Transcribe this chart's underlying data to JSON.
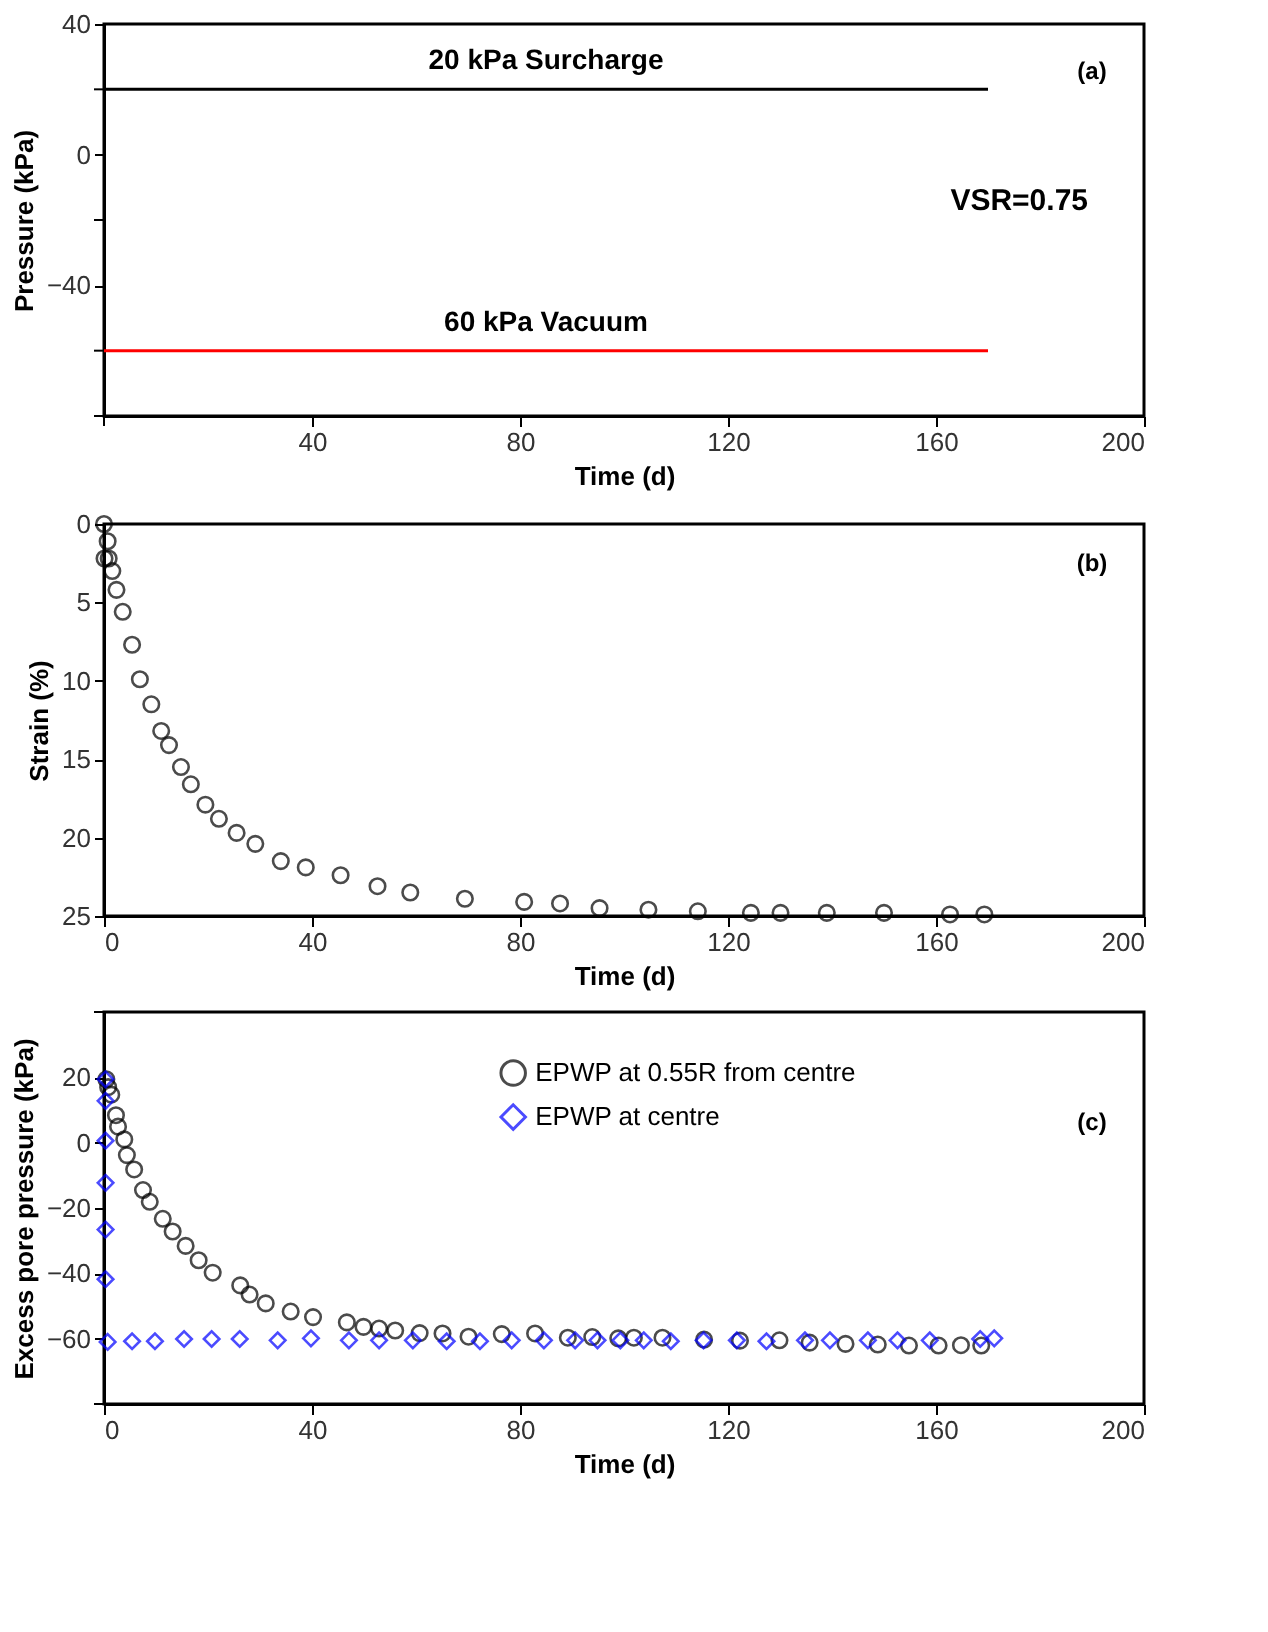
{
  "chart_data": [
    {
      "type": "line",
      "ylabel": "Pressure (kPa)",
      "xlabel": "Time (d)",
      "xlim": [
        0,
        200
      ],
      "ylim": [
        -80,
        40
      ],
      "xticks": [
        {
          "value": 0,
          "label": null
        },
        40,
        80,
        120,
        160,
        200
      ],
      "yticks": [
        40,
        {
          "value": 20,
          "label": null
        },
        0,
        {
          "value": -20,
          "label": null
        },
        -40,
        {
          "value": -60,
          "label": null
        },
        {
          "value": -80,
          "label": null
        }
      ],
      "series": [
        {
          "name": "20 kPa Surcharge",
          "color": "#000000",
          "x": [
            0,
            170
          ],
          "values": [
            20,
            20
          ]
        },
        {
          "name": "60 kPa Vacuum",
          "color": "#ff0000",
          "x": [
            0,
            170
          ],
          "values": [
            -60,
            -60
          ]
        }
      ],
      "annotations": [
        "(a)",
        "VSR=0.75"
      ],
      "marker": "none",
      "grid": false
    },
    {
      "type": "scatter",
      "ylabel": "Strain (%)",
      "xlabel": "Time (d)",
      "xlim": [
        0,
        200
      ],
      "ylim": [
        25,
        0
      ],
      "xticks": [
        0,
        40,
        80,
        120,
        160,
        200
      ],
      "yticks": [
        0,
        5,
        10,
        15,
        20,
        25
      ],
      "series": [
        {
          "color": "#000000",
          "marker": "circle",
          "x": [
            0,
            0.7,
            0.1,
            0.9,
            1.6,
            2.4,
            3.6,
            5.4,
            6.9,
            9.1,
            11.0,
            12.5,
            14.8,
            16.7,
            19.5,
            22.1,
            25.5,
            29.1,
            34.0,
            38.8,
            45.5,
            52.6,
            58.9,
            69.4,
            80.8,
            87.7,
            95.3,
            104.7,
            114.2,
            124.4,
            130.1,
            139.0,
            150.0,
            162.7,
            169.3
          ],
          "values": [
            0,
            1.1,
            2.2,
            2.2,
            3.0,
            4.2,
            5.6,
            7.7,
            9.9,
            11.5,
            13.2,
            14.1,
            15.5,
            16.6,
            17.9,
            18.8,
            19.7,
            20.4,
            21.5,
            21.9,
            22.4,
            23.1,
            23.5,
            23.9,
            24.1,
            24.2,
            24.5,
            24.6,
            24.7,
            24.8,
            24.8,
            24.8,
            24.8,
            24.9,
            24.9
          ]
        }
      ],
      "annotations": [
        "(b)"
      ],
      "grid": false
    },
    {
      "type": "scatter",
      "ylabel": "Excess pore pressure (kPa)",
      "xlabel": "Time (d)",
      "xlim": [
        0,
        200
      ],
      "ylim": [
        -80,
        40
      ],
      "xticks": [
        0,
        40,
        80,
        120,
        160,
        200
      ],
      "yticks": [
        {
          "value": 40,
          "label": null
        },
        20,
        0,
        -20,
        -40,
        -60,
        {
          "value": -80,
          "label": null
        }
      ],
      "series": [
        {
          "name": "EPWP at 0.55R from centre",
          "color": "#000000",
          "marker": "circle",
          "x": [
            0.45,
            0.8,
            1.4,
            2.3,
            2.7,
            3.9,
            4.4,
            5.8,
            7.5,
            8.8,
            11.3,
            13.2,
            15.7,
            18.2,
            20.9,
            26.2,
            28.0,
            31.1,
            35.9,
            40.2,
            46.7,
            49.9,
            52.9,
            56.0,
            60.7,
            65.1,
            70.1,
            76.5,
            82.9,
            89.2,
            93.9,
            98.9,
            101.9,
            107.4,
            115.4,
            122.3,
            129.9,
            135.7,
            142.6,
            148.8,
            154.8,
            160.5,
            164.8,
            168.7
          ],
          "values": [
            19.4,
            17,
            14.7,
            8.4,
            4.9,
            1,
            -3.8,
            -8.2,
            -14.5,
            -18.1,
            -23.3,
            -27.2,
            -31.6,
            -36,
            -39.8,
            -43.7,
            -46.5,
            -49.2,
            -51.7,
            -53.4,
            -55,
            -56.4,
            -56.9,
            -57.5,
            -58.3,
            -58.4,
            -59.4,
            -58.6,
            -58.4,
            -59.7,
            -59.5,
            -59.9,
            -59.7,
            -59.7,
            -60.3,
            -60.6,
            -60.5,
            -61.2,
            -61.6,
            -61.8,
            -62.1,
            -62.1,
            -62,
            -62.1
          ]
        },
        {
          "name": "EPWP at centre",
          "color": "#0000ff",
          "marker": "diamond",
          "x": [
            0.3,
            0.3,
            0.3,
            0.3,
            0.3,
            0.3,
            0.7,
            5.4,
            9.8,
            15.4,
            20.7,
            26.1,
            33.4,
            39.8,
            47.1,
            52.9,
            59.4,
            65.9,
            72.3,
            78.4,
            84.6,
            90.6,
            94.9,
            99.3,
            103.8,
            109.0,
            115.3,
            121.7,
            127.4,
            134.8,
            139.6,
            146.9,
            152.6,
            158.8,
            168.5,
            171.2
          ],
          "values": [
            19.4,
            12.8,
            0.6,
            -12.3,
            -26.6,
            -41.8,
            -61.0,
            -60.8,
            -60.8,
            -60.1,
            -60.1,
            -60.1,
            -60.5,
            -59.9,
            -60.5,
            -60.5,
            -60.5,
            -60.8,
            -60.8,
            -60.5,
            -60.5,
            -60.5,
            -60.5,
            -60.5,
            -60.5,
            -60.8,
            -60.5,
            -60.5,
            -60.8,
            -60.5,
            -60.5,
            -60.5,
            -60.5,
            -60.5,
            -60.1,
            -59.9
          ]
        }
      ],
      "annotations": [
        "(c)"
      ],
      "grid": false,
      "legend": "top"
    }
  ]
}
